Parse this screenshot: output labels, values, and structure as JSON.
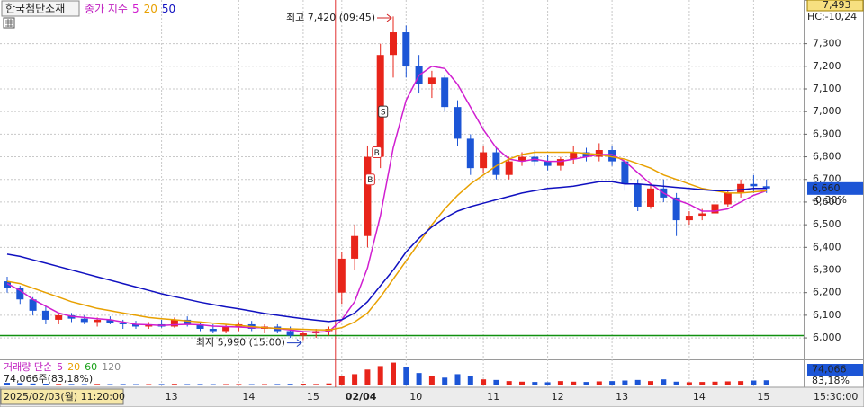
{
  "header": {
    "stock_name": "한국첨단소재",
    "indicator_label": "종가 지수"
  },
  "volume_legend": {
    "label": "거래량 단순",
    "averages": [
      {
        "name": "5",
        "color": "#c020c0"
      },
      {
        "name": "20",
        "color": "#e8a000"
      },
      {
        "name": "60",
        "color": "#18a018"
      },
      {
        "name": "120",
        "color": "#888888"
      }
    ],
    "info": "74,066주(83,18%)"
  },
  "chart_data": {
    "type": "candlestick",
    "categories": [
      null,
      null,
      null,
      null,
      null,
      null,
      null,
      null,
      null,
      null,
      null,
      null,
      "13",
      null,
      null,
      null,
      null,
      null,
      "14",
      null,
      null,
      null,
      null,
      "15",
      null,
      null,
      "02/04",
      null,
      null,
      null,
      null,
      "10",
      null,
      null,
      null,
      null,
      null,
      "11",
      null,
      null,
      null,
      null,
      "12",
      null,
      null,
      null,
      null,
      "13",
      null,
      null,
      null,
      null,
      null,
      "14",
      null,
      null,
      null,
      null,
      "15",
      null
    ],
    "open": [
      6250,
      6220,
      6170,
      6120,
      6080,
      6100,
      6085,
      6070,
      6080,
      6065,
      6060,
      6050,
      6060,
      6050,
      6080,
      6060,
      6040,
      6030,
      6050,
      6060,
      6040,
      6050,
      6030,
      6010,
      6020,
      6030,
      6200,
      6350,
      6450,
      6800,
      7250,
      7350,
      7200,
      7120,
      7150,
      7020,
      6880,
      6750,
      6820,
      6720,
      6780,
      6800,
      6780,
      6760,
      6790,
      6820,
      6800,
      6830,
      6780,
      6680,
      6580,
      6660,
      6620,
      6520,
      6540,
      6550,
      6590,
      6640,
      6680,
      6670
    ],
    "high": [
      6270,
      6230,
      6180,
      6140,
      6110,
      6110,
      6100,
      6090,
      6095,
      6080,
      6075,
      6070,
      6080,
      6090,
      6095,
      6070,
      6060,
      6060,
      6070,
      6075,
      6060,
      6060,
      6050,
      6030,
      6040,
      6050,
      6380,
      6500,
      6850,
      7300,
      7420,
      7380,
      7250,
      7180,
      7160,
      7050,
      6900,
      6850,
      6840,
      6800,
      6820,
      6830,
      6810,
      6800,
      6850,
      6840,
      6860,
      6850,
      6790,
      6700,
      6680,
      6700,
      6640,
      6560,
      6570,
      6600,
      6650,
      6700,
      6720,
      6700
    ],
    "low": [
      6200,
      6150,
      6100,
      6060,
      6060,
      6070,
      6060,
      6050,
      6060,
      6040,
      6040,
      6040,
      6045,
      6045,
      6050,
      6030,
      6020,
      6020,
      6030,
      6030,
      6020,
      6020,
      6000,
      5990,
      6000,
      6010,
      6150,
      6300,
      6400,
      6750,
      7150,
      7150,
      7080,
      7060,
      7000,
      6850,
      6720,
      6730,
      6700,
      6700,
      6760,
      6760,
      6740,
      6740,
      6770,
      6780,
      6780,
      6760,
      6650,
      6560,
      6570,
      6600,
      6450,
      6500,
      6520,
      6540,
      6580,
      6620,
      6640,
      6640
    ],
    "close": [
      6220,
      6170,
      6120,
      6080,
      6100,
      6085,
      6070,
      6080,
      6065,
      6060,
      6050,
      6060,
      6050,
      6080,
      6060,
      6040,
      6030,
      6050,
      6060,
      6040,
      6050,
      6030,
      6010,
      6020,
      6030,
      6040,
      6350,
      6450,
      6800,
      7250,
      7350,
      7200,
      7120,
      7150,
      7020,
      6880,
      6750,
      6820,
      6720,
      6780,
      6800,
      6780,
      6760,
      6790,
      6820,
      6800,
      6830,
      6780,
      6680,
      6580,
      6660,
      6620,
      6520,
      6540,
      6550,
      6590,
      6640,
      6680,
      6670,
      6660
    ],
    "up_color": "#e8241a",
    "down_color": "#1c55d6",
    "series": [
      {
        "name": "5",
        "color": "#d01ed0",
        "values": [
          6240,
          6210,
          6170,
          6140,
          6110,
          6095,
          6090,
          6085,
          6080,
          6070,
          6060,
          6058,
          6055,
          6058,
          6060,
          6058,
          6052,
          6050,
          6048,
          6045,
          6045,
          6042,
          6035,
          6028,
          6025,
          6028,
          6080,
          6160,
          6310,
          6540,
          6840,
          7050,
          7160,
          7200,
          7190,
          7120,
          7020,
          6920,
          6840,
          6790,
          6780,
          6790,
          6780,
          6780,
          6790,
          6800,
          6810,
          6810,
          6780,
          6730,
          6680,
          6640,
          6610,
          6590,
          6560,
          6560,
          6570,
          6600,
          6630,
          6650
        ]
      },
      {
        "name": "20",
        "color": "#e8a000",
        "values": [
          6250,
          6240,
          6220,
          6200,
          6180,
          6160,
          6145,
          6130,
          6120,
          6110,
          6100,
          6090,
          6085,
          6080,
          6075,
          6070,
          6065,
          6060,
          6055,
          6050,
          6045,
          6042,
          6040,
          6038,
          6036,
          6035,
          6045,
          6070,
          6110,
          6180,
          6260,
          6340,
          6420,
          6500,
          6570,
          6630,
          6680,
          6720,
          6760,
          6790,
          6810,
          6820,
          6820,
          6820,
          6820,
          6815,
          6810,
          6800,
          6790,
          6770,
          6750,
          6720,
          6700,
          6680,
          6660,
          6650,
          6640,
          6640,
          6645,
          6650
        ]
      },
      {
        "name": "50",
        "color": "#1010c0",
        "values": [
          6370,
          6360,
          6345,
          6330,
          6315,
          6300,
          6285,
          6270,
          6255,
          6240,
          6225,
          6210,
          6195,
          6182,
          6170,
          6158,
          6147,
          6137,
          6128,
          6118,
          6108,
          6100,
          6092,
          6085,
          6078,
          6072,
          6080,
          6110,
          6160,
          6230,
          6300,
          6380,
          6440,
          6490,
          6530,
          6560,
          6580,
          6595,
          6610,
          6625,
          6640,
          6650,
          6660,
          6665,
          6670,
          6680,
          6690,
          6690,
          6680,
          6680,
          6675,
          6670,
          6665,
          6660,
          6655,
          6650,
          6650,
          6655,
          6660,
          6660
        ]
      }
    ],
    "ylim": [
      5905,
      7493
    ],
    "yticks": [
      {
        "value": 6000,
        "label": "6,000"
      },
      {
        "value": 6100,
        "label": "6,100"
      },
      {
        "value": 6200,
        "label": "6,200"
      },
      {
        "value": 6300,
        "label": "6,300"
      },
      {
        "value": 6400,
        "label": "6,400"
      },
      {
        "value": 6500,
        "label": "6,500"
      },
      {
        "value": 6600,
        "label": "6,600"
      },
      {
        "value": 6700,
        "label": "6,700"
      },
      {
        "value": 6800,
        "label": "6,800"
      },
      {
        "value": 6900,
        "label": "6,900"
      },
      {
        "value": 7000,
        "label": "7,000"
      },
      {
        "value": 7100,
        "label": "7,100"
      },
      {
        "value": 7200,
        "label": "7,200"
      },
      {
        "value": 7300,
        "label": "7,300"
      }
    ],
    "grid": true,
    "reference_line": 6010,
    "high_annotation": "최고 7,420 (09:45)",
    "low_annotation": "최저 5,990 (15:00)",
    "signals": [
      "B",
      "B",
      "S"
    ],
    "top_price": {
      "value": 7493,
      "label": "7,493"
    },
    "hc_label": "HC:-10,24",
    "current_price": {
      "value": 6660,
      "label": "6,660"
    },
    "change_label": "-0,30%",
    "volume": [
      30000,
      25000,
      18000,
      15000,
      12000,
      10000,
      9000,
      11000,
      8000,
      9000,
      7000,
      8000,
      9000,
      12000,
      8000,
      9000,
      7000,
      8000,
      9000,
      7000,
      8000,
      9000,
      12000,
      15000,
      10000,
      20000,
      150000,
      180000,
      260000,
      320000,
      380000,
      300000,
      200000,
      150000,
      120000,
      180000,
      140000,
      90000,
      80000,
      60000,
      50000,
      45000,
      40000,
      60000,
      50000,
      45000,
      55000,
      60000,
      70000,
      80000,
      60000,
      90000,
      50000,
      40000,
      45000,
      50000,
      55000,
      60000,
      70000,
      74066
    ],
    "volume_ylim": [
      0,
      420000
    ],
    "current_volume": {
      "value": 74066,
      "label": "74,066"
    },
    "volume_ratio_label": "83,18%",
    "start_time": "2025/02/03(월) 11:20:00",
    "end_time": "15:30:00"
  }
}
